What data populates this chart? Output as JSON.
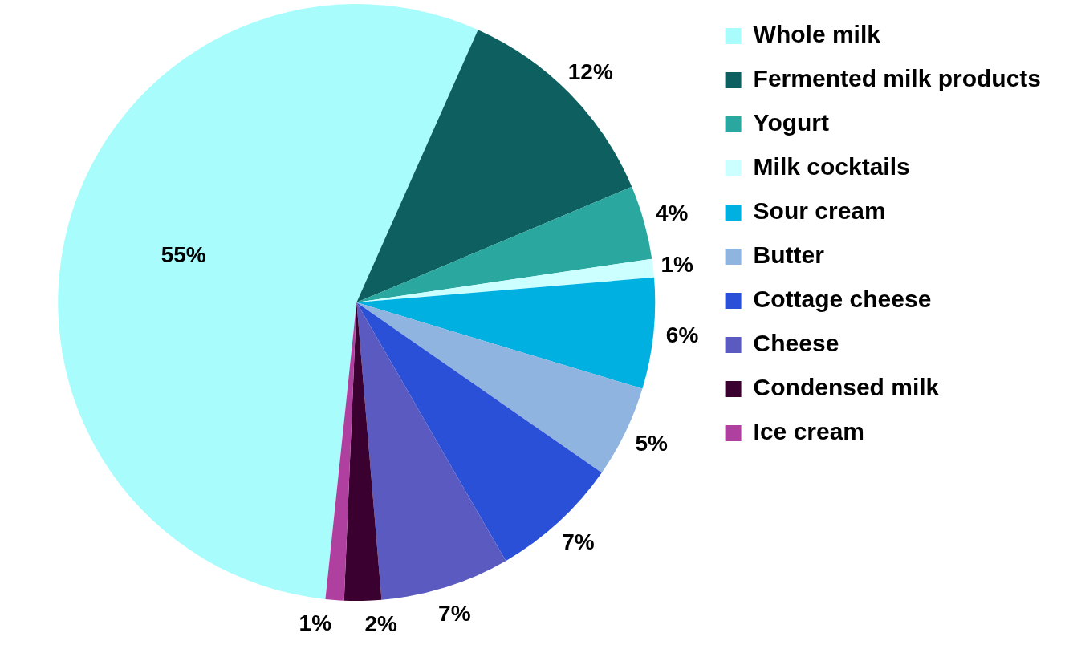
{
  "chart_data": {
    "type": "pie",
    "categories": [
      "Whole milk",
      "Fermented milk products",
      "Yogurt",
      "Milk cocktails",
      "Sour cream",
      "Butter",
      "Cottage cheese",
      "Cheese",
      "Condensed milk",
      "Ice cream"
    ],
    "values": [
      55,
      12,
      4,
      1,
      6,
      5,
      7,
      7,
      2,
      1
    ],
    "value_labels": [
      "55%",
      "12%",
      "4%",
      "1%",
      "6%",
      "5%",
      "7%",
      "7%",
      "2%",
      "1%"
    ],
    "colors": [
      "#a8fcfc",
      "#0e5f5f",
      "#2aa8a0",
      "#ccffff",
      "#00b0e0",
      "#90b4e0",
      "#2a50d8",
      "#5a5ac0",
      "#3a0030",
      "#b040a0"
    ],
    "legend": "right"
  }
}
